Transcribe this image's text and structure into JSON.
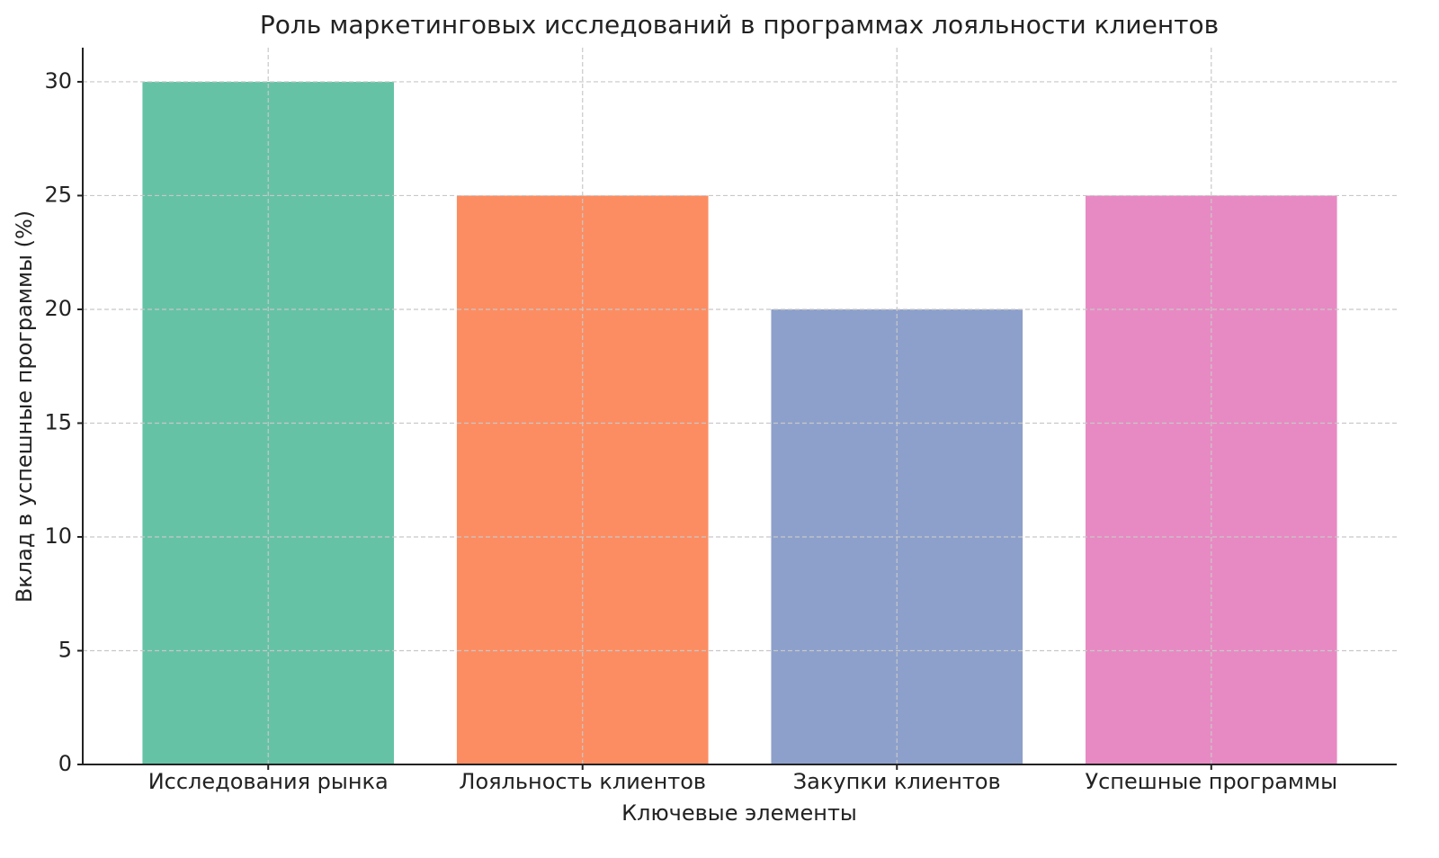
{
  "chart_data": {
    "type": "bar",
    "title": "Роль маркетинговых исследований в программах лояльности клиентов",
    "x_label": "Ключевые элементы",
    "y_label": "Вклад в успешные программы (%)",
    "categories": [
      "Исследования рынка",
      "Лояльность клиентов",
      "Закупки клиентов",
      "Успешные программы"
    ],
    "values": [
      30,
      25,
      20,
      25
    ],
    "colors": [
      "#66c2a5",
      "#fc8d62",
      "#8da0cb",
      "#e78ac3"
    ],
    "ylim": [
      0,
      31.5
    ],
    "yticks": [
      0,
      5,
      10,
      15,
      20,
      25,
      30
    ],
    "grid": true
  }
}
